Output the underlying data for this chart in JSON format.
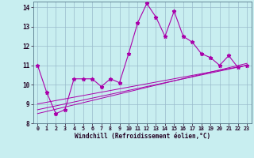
{
  "xlabel": "Windchill (Refroidissement éolien,°C)",
  "bg_color": "#c8eef0",
  "line_color": "#aa00aa",
  "grid_color": "#99bbcc",
  "xlim": [
    -0.5,
    23.5
  ],
  "ylim": [
    8,
    14.3
  ],
  "xticks": [
    0,
    1,
    2,
    3,
    4,
    5,
    6,
    7,
    8,
    9,
    10,
    11,
    12,
    13,
    14,
    15,
    16,
    17,
    18,
    19,
    20,
    21,
    22,
    23
  ],
  "yticks": [
    8,
    9,
    10,
    11,
    12,
    13,
    14
  ],
  "main_y": [
    11.0,
    9.6,
    8.5,
    8.7,
    10.3,
    10.3,
    10.3,
    9.9,
    10.3,
    10.1,
    11.6,
    13.2,
    14.2,
    13.5,
    12.5,
    13.8,
    12.5,
    12.2,
    11.6,
    11.4,
    11.0,
    11.5,
    10.9,
    11.0
  ],
  "trend1_start": 9.0,
  "trend1_end": 11.0,
  "trend2_start": 8.7,
  "trend2_end": 11.0,
  "trend3_start": 8.5,
  "trend3_end": 11.1
}
